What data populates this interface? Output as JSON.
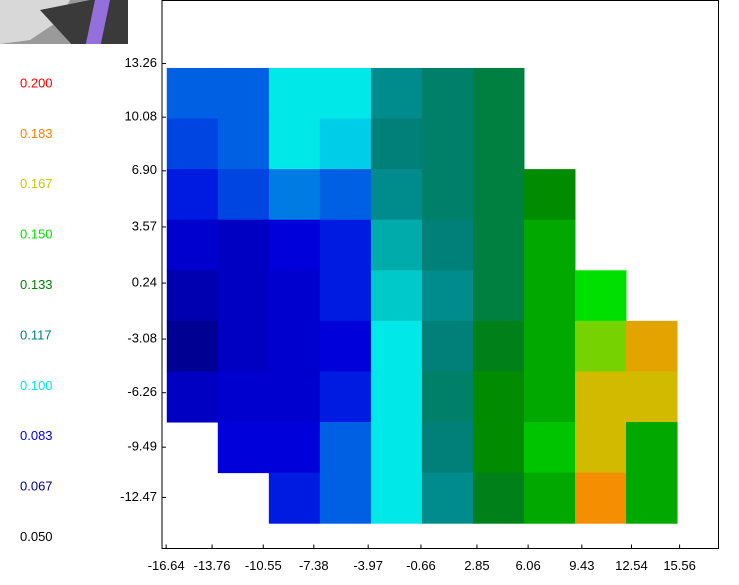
{
  "chart_data": {
    "type": "heatmap",
    "xlim": [
      -16.9,
      18.0
    ],
    "ylim": [
      -15.5,
      17.0
    ],
    "xticks": [
      -16.64,
      -13.76,
      -10.55,
      -7.38,
      -3.97,
      -0.66,
      2.85,
      6.06,
      9.43,
      12.54,
      15.56
    ],
    "yticks": [
      13.26,
      10.08,
      {
        "value": 6.9,
        "label": "6.90"
      },
      3.57,
      0.24,
      -3.08,
      -6.26,
      -9.49,
      -12.47
    ],
    "x": [
      -15.0,
      -11.8,
      -8.6,
      -5.4,
      -2.2,
      1.0,
      4.2,
      7.4,
      10.6,
      13.8
    ],
    "y": [
      11.5,
      8.5,
      5.5,
      2.5,
      -0.5,
      -3.5,
      -6.5,
      -9.5,
      -12.5
    ],
    "z": [
      [
        0.09,
        0.09,
        0.1,
        0.1,
        0.115,
        0.12,
        0.125,
        null,
        null,
        null
      ],
      [
        0.088,
        0.09,
        0.1,
        0.098,
        0.118,
        0.12,
        0.125,
        null,
        null,
        null
      ],
      [
        0.085,
        0.088,
        0.092,
        0.09,
        0.115,
        0.12,
        0.125,
        0.135,
        null,
        null
      ],
      [
        0.08,
        0.078,
        0.082,
        0.085,
        0.11,
        0.118,
        0.125,
        0.14,
        null,
        null
      ],
      [
        0.075,
        0.078,
        0.08,
        0.085,
        0.105,
        0.115,
        0.125,
        0.14,
        0.15,
        null
      ],
      [
        0.07,
        0.078,
        0.08,
        0.082,
        0.1,
        0.118,
        0.13,
        0.14,
        0.16,
        0.175
      ],
      [
        0.078,
        0.08,
        0.08,
        0.085,
        0.1,
        0.12,
        0.135,
        0.14,
        0.17,
        0.17
      ],
      [
        null,
        0.082,
        0.082,
        0.09,
        0.1,
        0.118,
        0.135,
        0.145,
        0.17,
        0.14
      ],
      [
        null,
        null,
        0.085,
        0.09,
        0.1,
        0.115,
        0.13,
        0.14,
        0.18,
        0.14
      ]
    ],
    "colorbar": [
      {
        "value": 0.2,
        "label": "0.200",
        "color": "#ff0000"
      },
      {
        "value": 0.183,
        "label": "0.183",
        "color": "#ff8000"
      },
      {
        "value": 0.167,
        "label": "0.167",
        "color": "#c8c800"
      },
      {
        "value": 0.15,
        "label": "0.150",
        "color": "#00e000"
      },
      {
        "value": 0.133,
        "label": "0.133",
        "color": "#008000"
      },
      {
        "value": 0.117,
        "label": "0.117",
        "color": "#008080"
      },
      {
        "value": 0.1,
        "label": "0.100",
        "color": "#00e8e8"
      },
      {
        "value": 0.083,
        "label": "0.083",
        "color": "#0000e0"
      },
      {
        "value": 0.067,
        "label": "0.067",
        "color": "#000080"
      },
      {
        "value": 0.05,
        "label": "0.050",
        "color": "#000000"
      }
    ]
  }
}
